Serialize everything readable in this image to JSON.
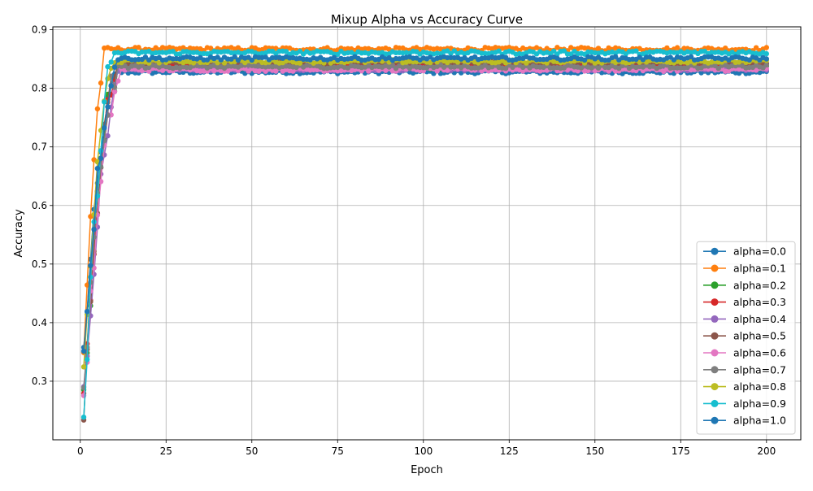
{
  "chart_data": {
    "type": "line",
    "title": "Mixup Alpha vs Accuracy Curve",
    "xlabel": "Epoch",
    "ylabel": "Accuracy",
    "xlim": [
      -8,
      210
    ],
    "ylim": [
      0.2,
      0.905
    ],
    "x_ticks": [
      0,
      25,
      50,
      75,
      100,
      125,
      150,
      175,
      200
    ],
    "y_ticks": [
      0.3,
      0.4,
      0.5,
      0.6,
      0.7,
      0.8,
      0.9
    ],
    "grid": true,
    "legend_position": "lower-right",
    "marker": "circle",
    "epochs": [
      1,
      200
    ],
    "series": [
      {
        "name": "alpha=0.0",
        "color": "#1f77b4",
        "start": 0.35,
        "plateau": 0.828,
        "rise_epochs": 10,
        "noise": 0.003
      },
      {
        "name": "alpha=0.1",
        "color": "#ff7f0e",
        "start": 0.345,
        "plateau": 0.867,
        "rise_epochs": 7,
        "noise": 0.003
      },
      {
        "name": "alpha=0.2",
        "color": "#2ca02c",
        "start": 0.27,
        "plateau": 0.836,
        "rise_epochs": 10,
        "noise": 0.003
      },
      {
        "name": "alpha=0.3",
        "color": "#d62728",
        "start": 0.26,
        "plateau": 0.84,
        "rise_epochs": 10,
        "noise": 0.003
      },
      {
        "name": "alpha=0.4",
        "color": "#9467bd",
        "start": 0.27,
        "plateau": 0.833,
        "rise_epochs": 11,
        "noise": 0.003
      },
      {
        "name": "alpha=0.5",
        "color": "#8c564b",
        "start": 0.24,
        "plateau": 0.843,
        "rise_epochs": 10,
        "noise": 0.003
      },
      {
        "name": "alpha=0.6",
        "color": "#e377c2",
        "start": 0.27,
        "plateau": 0.832,
        "rise_epochs": 11,
        "noise": 0.003
      },
      {
        "name": "alpha=0.7",
        "color": "#7f7f7f",
        "start": 0.275,
        "plateau": 0.837,
        "rise_epochs": 10,
        "noise": 0.003
      },
      {
        "name": "alpha=0.8",
        "color": "#bcbd22",
        "start": 0.318,
        "plateau": 0.846,
        "rise_epochs": 9,
        "noise": 0.003
      },
      {
        "name": "alpha=0.9",
        "color": "#17becf",
        "start": 0.232,
        "plateau": 0.861,
        "rise_epochs": 9,
        "noise": 0.003
      },
      {
        "name": "alpha=1.0",
        "color": "#1f77b4",
        "start": 0.35,
        "plateau": 0.851,
        "rise_epochs": 10,
        "noise": 0.003
      }
    ]
  }
}
